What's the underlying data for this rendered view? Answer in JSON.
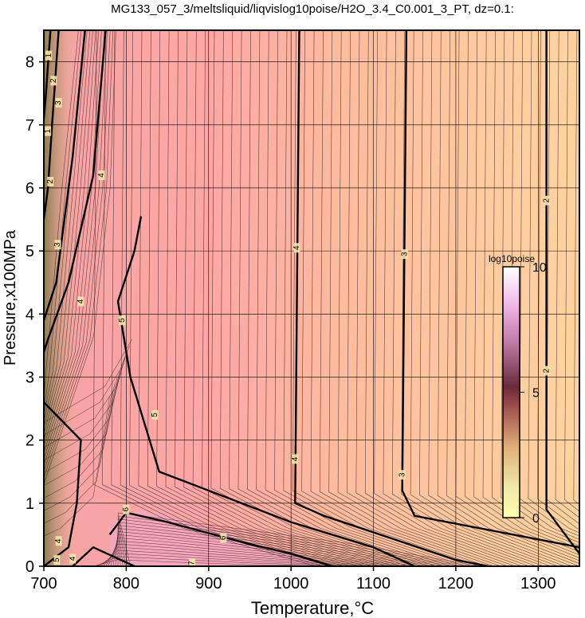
{
  "title": "MG133_057_3/meltsliquid/liqvislog10poise/H2O_3.4_C0.001_3_PT, dz=0.1:",
  "chart_data": {
    "type": "heatmap",
    "title": "MG133_057_3/meltsliquid/liqvislog10poise/H2O_3.4_C0.001_3_PT, dz=0.1:",
    "xlabel": "Temperature,°C",
    "ylabel": "Pressure,x100MPa",
    "xlim": [
      700,
      1350
    ],
    "ylim": [
      0,
      8.5
    ],
    "xticks": [
      700,
      800,
      900,
      1000,
      1100,
      1200,
      1300
    ],
    "yticks": [
      0,
      1,
      2,
      3,
      4,
      5,
      6,
      7,
      8
    ],
    "grid": true,
    "colorbar": {
      "label": "log10poise",
      "range": [
        0,
        10
      ],
      "ticks": [
        0,
        5,
        10
      ],
      "placement": "right-inside",
      "colors": [
        "#ffffb0",
        "#e8c89c",
        "#6a2a3a",
        "#e8b0e0",
        "#ffffff"
      ]
    },
    "contour_interval": 0.1,
    "bold_contours": [
      {
        "level": 2,
        "points": [
          [
            1310,
            8.5
          ],
          [
            1310,
            0.9
          ],
          [
            1350,
            0.2
          ]
        ]
      },
      {
        "level": 3,
        "points": [
          [
            1140,
            8.5
          ],
          [
            1135,
            1.2
          ],
          [
            1150,
            0.8
          ],
          [
            1350,
            0.3
          ]
        ]
      },
      {
        "level": 4,
        "points": [
          [
            1010,
            8.5
          ],
          [
            1005,
            1.0
          ],
          [
            1040,
            0.8
          ],
          [
            1200,
            0.1
          ],
          [
            1240,
            0.0
          ]
        ]
      },
      {
        "level": 4,
        "points": [
          [
            775,
            8.5
          ],
          [
            760,
            6.2
          ],
          [
            730,
            4.5
          ],
          [
            705,
            3.6
          ],
          [
            700,
            3.4
          ]
        ]
      },
      {
        "level": 5,
        "points": [
          [
            818,
            5.55
          ],
          [
            810,
            5.0
          ],
          [
            790,
            4.2
          ],
          [
            805,
            3.0
          ],
          [
            840,
            1.5
          ],
          [
            900,
            1.2
          ],
          [
            1000,
            0.7
          ],
          [
            1100,
            0.3
          ],
          [
            1150,
            0.0
          ]
        ]
      },
      {
        "level": 6,
        "points": [
          [
            780,
            0.5
          ],
          [
            800,
            0.85
          ],
          [
            850,
            0.7
          ],
          [
            950,
            0.35
          ],
          [
            1000,
            0.2
          ],
          [
            1050,
            0.0
          ]
        ]
      },
      {
        "level": 3,
        "points": [
          [
            750,
            8.5
          ],
          [
            735,
            6.5
          ],
          [
            715,
            4.5
          ],
          [
            700,
            3.9
          ]
        ]
      },
      {
        "level": 2,
        "points": [
          [
            718,
            8.5
          ],
          [
            710,
            7.0
          ],
          [
            705,
            6.0
          ],
          [
            700,
            5.5
          ]
        ]
      },
      {
        "level": 1,
        "points": [
          [
            708,
            8.5
          ],
          [
            702,
            7.4
          ],
          [
            700,
            7.1
          ]
        ]
      },
      {
        "level": 3,
        "points": [
          [
            700,
            2.6
          ],
          [
            745,
            2.0
          ],
          [
            740,
            1.0
          ],
          [
            730,
            0.3
          ],
          [
            700,
            0.0
          ]
        ]
      },
      {
        "level": 4,
        "points": [
          [
            735,
            0.0
          ],
          [
            760,
            0.3
          ],
          [
            810,
            0.0
          ]
        ]
      }
    ],
    "contour_labels": [
      {
        "text": "2",
        "x": 1310,
        "y": 5.8
      },
      {
        "text": "2",
        "x": 1310,
        "y": 3.1
      },
      {
        "text": "3",
        "x": 1138,
        "y": 4.95
      },
      {
        "text": "3",
        "x": 1135,
        "y": 1.45
      },
      {
        "text": "4",
        "x": 1007,
        "y": 5.05
      },
      {
        "text": "4",
        "x": 1005,
        "y": 1.7
      },
      {
        "text": "4",
        "x": 770,
        "y": 6.2
      },
      {
        "text": "4",
        "x": 745,
        "y": 4.2
      },
      {
        "text": "5",
        "x": 795,
        "y": 3.9
      },
      {
        "text": "5",
        "x": 835,
        "y": 2.4
      },
      {
        "text": "6",
        "x": 800,
        "y": 0.9
      },
      {
        "text": "6",
        "x": 918,
        "y": 0.45
      },
      {
        "text": "3",
        "x": 718,
        "y": 7.35
      },
      {
        "text": "3",
        "x": 717,
        "y": 5.1
      },
      {
        "text": "2",
        "x": 712,
        "y": 7.7
      },
      {
        "text": "2",
        "x": 708,
        "y": 6.1
      },
      {
        "text": "1",
        "x": 706,
        "y": 8.1
      },
      {
        "text": "1",
        "x": 705,
        "y": 6.9
      },
      {
        "text": "4",
        "x": 718,
        "y": 0.4
      },
      {
        "text": "5",
        "x": 716,
        "y": 0.1
      },
      {
        "text": "4",
        "x": 735,
        "y": 0.12
      },
      {
        "text": "7",
        "x": 880,
        "y": 0.05
      }
    ]
  }
}
